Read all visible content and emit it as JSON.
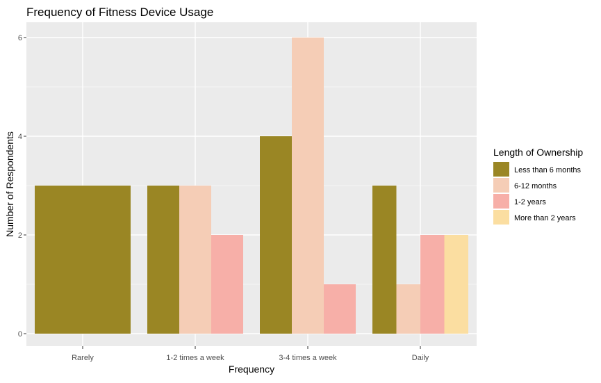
{
  "chart_data": {
    "type": "bar",
    "title": "Frequency of Fitness Device Usage",
    "xlabel": "Frequency",
    "ylabel": "Number of Respondents",
    "categories": [
      "Rarely",
      "1-2 times a week",
      "3-4 times a week",
      "Daily"
    ],
    "ylim": [
      0,
      6.3
    ],
    "yticks": [
      0,
      2,
      4,
      6
    ],
    "grid": true,
    "legend": {
      "title": "Length of Ownership",
      "placement": "right"
    },
    "series": [
      {
        "name": "Less than 6 months",
        "color": "#9a8624",
        "values": [
          3,
          3,
          4,
          3
        ]
      },
      {
        "name": "6-12 months",
        "color": "#f5cdb6",
        "values": [
          null,
          3,
          6,
          1
        ]
      },
      {
        "name": "1-2 years",
        "color": "#f7afa8",
        "values": [
          null,
          2,
          1,
          2
        ]
      },
      {
        "name": "More than 2 years",
        "color": "#fbdea1",
        "values": [
          null,
          null,
          null,
          2
        ]
      }
    ],
    "panel_color": "#ebebeb",
    "grid_color": "#ffffff"
  }
}
